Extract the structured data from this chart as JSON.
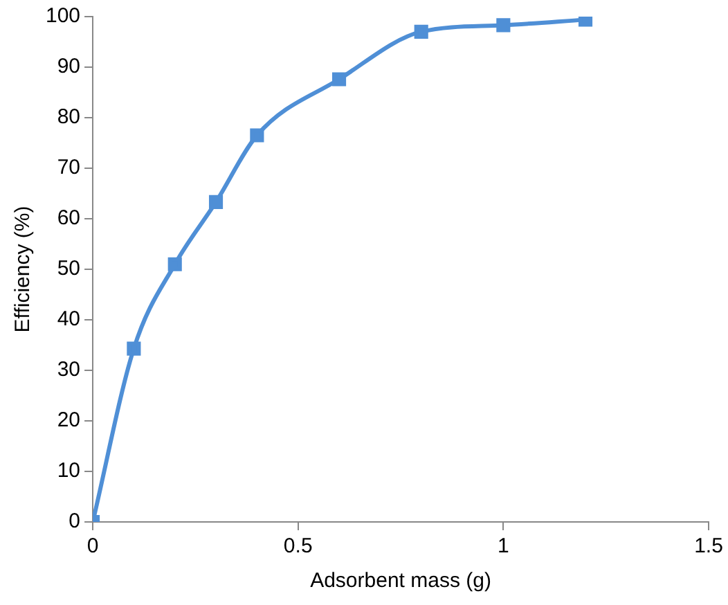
{
  "chart_data": {
    "type": "line",
    "xlabel": "Adsorbent mass (g)",
    "ylabel": "Efficiency (%)",
    "x": [
      0,
      0.1,
      0.2,
      0.3,
      0.4,
      0.6,
      0.8,
      1,
      1.2
    ],
    "series": [
      {
        "color": "#4f8fd6",
        "values": [
          0,
          34.3,
          51,
          63.3,
          76.5,
          87.6,
          97,
          98.3,
          99.4
        ]
      }
    ],
    "xlim": [
      0,
      1.5
    ],
    "xticks": [
      0,
      0.5,
      1,
      1.5
    ],
    "ylim": [
      0,
      100
    ],
    "yticks": [
      0,
      10,
      20,
      30,
      40,
      50,
      60,
      70,
      80,
      90,
      100
    ],
    "grid": false,
    "legend": false,
    "marker": "square",
    "line_style": "solid"
  }
}
